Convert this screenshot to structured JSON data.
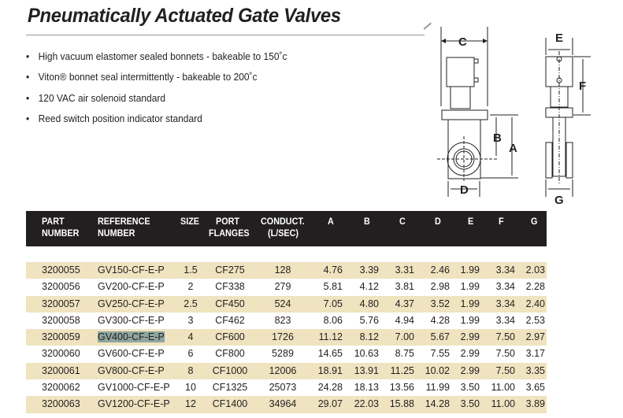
{
  "title": "Pneumatically Actuated Gate Valves",
  "bullets": [
    "High vacuum elastomer sealed bonnets - bakeable to 150˚c",
    "Viton® bonnet seal intermittently - bakeable to 200˚c",
    "120 VAC air solenoid standard",
    "Reed switch position indicator standard"
  ],
  "diagram_labels": {
    "a": "A",
    "b": "B",
    "c": "C",
    "d": "D",
    "e": "E",
    "f": "F",
    "g": "G"
  },
  "table": {
    "headers": {
      "part": [
        "PART",
        "NUMBER"
      ],
      "ref": [
        "REFERENCE",
        "NUMBER"
      ],
      "size": [
        "SIZE",
        ""
      ],
      "port": [
        "PORT",
        "FLANGES"
      ],
      "conduct": [
        "CONDUCT.",
        "(L/SEC)"
      ],
      "a": "A",
      "b": "B",
      "c": "C",
      "d": "D",
      "e": "E",
      "f": "F",
      "g": "G"
    },
    "rows": [
      [
        "3200055",
        "GV150-CF-E-P",
        "1.5",
        "CF275",
        "128",
        "4.76",
        "3.39",
        "3.31",
        "2.46",
        "1.99",
        "3.34",
        "2.03"
      ],
      [
        "3200056",
        "GV200-CF-E-P",
        "2",
        "CF338",
        "279",
        "5.81",
        "4.12",
        "3.81",
        "2.98",
        "1.99",
        "3.34",
        "2.28"
      ],
      [
        "3200057",
        "GV250-CF-E-P",
        "2.5",
        "CF450",
        "524",
        "7.05",
        "4.80",
        "4.37",
        "3.52",
        "1.99",
        "3.34",
        "2.40"
      ],
      [
        "3200058",
        "GV300-CF-E-P",
        "3",
        "CF462",
        "823",
        "8.06",
        "5.76",
        "4.94",
        "4.28",
        "1.99",
        "3.34",
        "2.53"
      ],
      [
        "3200059",
        "GV400-CF-E-P",
        "4",
        "CF600",
        "1726",
        "11.12",
        "8.12",
        "7.00",
        "5.67",
        "2.99",
        "7.50",
        "2.97"
      ],
      [
        "3200060",
        "GV600-CF-E-P",
        "6",
        "CF800",
        "5289",
        "14.65",
        "10.63",
        "8.75",
        "7.55",
        "2.99",
        "7.50",
        "3.17"
      ],
      [
        "3200061",
        "GV800-CF-E-P",
        "8",
        "CF1000",
        "12006",
        "18.91",
        "13.91",
        "11.25",
        "10.02",
        "2.99",
        "7.50",
        "3.35"
      ],
      [
        "3200062",
        "GV1000-CF-E-P",
        "10",
        "CF1325",
        "25073",
        "24.28",
        "18.13",
        "13.56",
        "11.99",
        "3.50",
        "11.00",
        "3.65"
      ],
      [
        "3200063",
        "GV1200-CF-E-P",
        "12",
        "CF1400",
        "34964",
        "29.07",
        "22.03",
        "15.88",
        "14.28",
        "3.50",
        "11.00",
        "3.89"
      ]
    ],
    "highlighted_row": 4
  }
}
